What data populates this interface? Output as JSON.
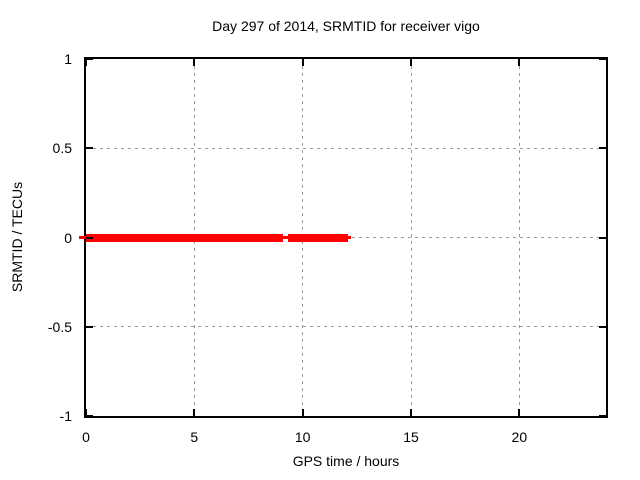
{
  "chart_data": {
    "type": "line",
    "title": "Day 297 of 2014, SRMTID for receiver vigo",
    "xlabel": "GPS time / hours",
    "ylabel": "SRMTID / TECUs",
    "xlim": [
      0,
      24
    ],
    "ylim": [
      -1,
      1
    ],
    "x_ticks": {
      "values": [
        0,
        5,
        10,
        15,
        20
      ],
      "labels": [
        "0",
        "5",
        "10",
        "15",
        "20"
      ]
    },
    "y_ticks": {
      "values": [
        1,
        0.5,
        0,
        -0.5,
        -1
      ],
      "labels": [
        "1",
        "0.5",
        "0",
        "-0.5",
        "-1"
      ]
    },
    "grid": true,
    "legend": "none",
    "series": [
      {
        "name": "SRMTID",
        "color": "#ff0000",
        "style": "thick points over thin line at constant y",
        "y": 0,
        "segments": [
          {
            "x_start": 0.0,
            "x_end": 9.1
          },
          {
            "x_start": 9.3,
            "x_end": 12.1
          }
        ]
      }
    ],
    "colors": {
      "background": "#ffffff",
      "border": "#000000",
      "text": "#000000",
      "grid": "#999999",
      "series": "#ff0000"
    }
  }
}
